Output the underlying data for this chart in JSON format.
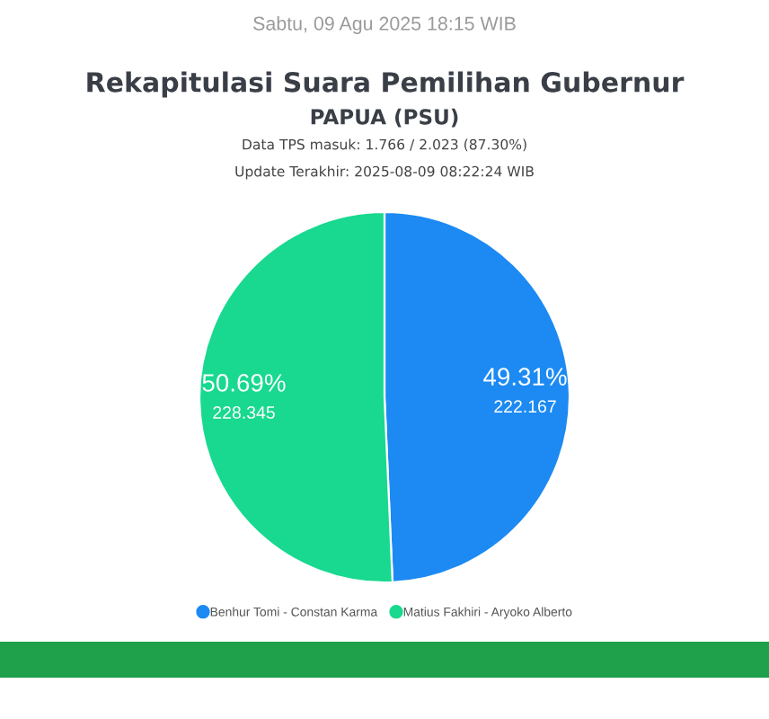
{
  "chart_data": {
    "type": "pie",
    "title": "Rekapitulasi Suara Pemilihan Gubernur",
    "subtitle": "PAPUA (PSU)",
    "annotations": [
      "Sabtu, 09 Agu 2025 18:15 WIB",
      "Data TPS masuk: 1.766 / 2.023 (87.30%)",
      "Update Terakhir: 2025-08-09 08:22:24 WIB"
    ],
    "categories": [
      "Benhur Tomi - Constan Karma",
      "Matius Fakhiri - Aryoko Alberto"
    ],
    "values": [
      49.31,
      50.69
    ],
    "value_labels": [
      "49.31%\n222.167",
      "50.69%\n228.345"
    ],
    "colors": [
      "#1c8af2",
      "#18d98f"
    ],
    "legend": "bottom"
  }
}
